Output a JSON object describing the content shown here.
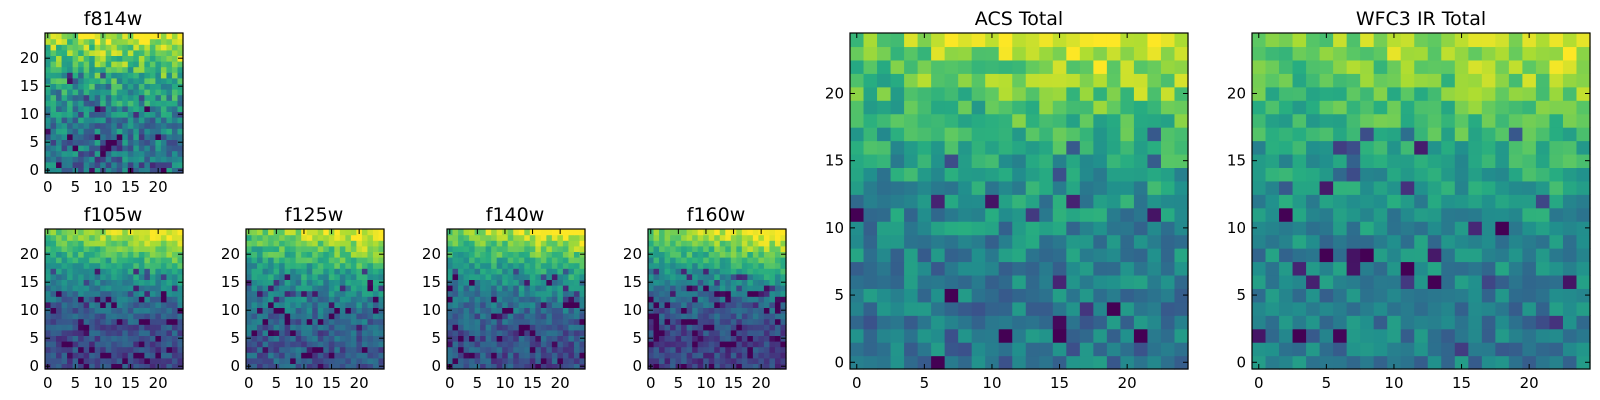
{
  "chart_data": [
    {
      "type": "heatmap",
      "title": "f814w",
      "grid": false,
      "colormap": "viridis",
      "xlim": [
        -0.5,
        24.5
      ],
      "ylim": [
        -0.5,
        24.5
      ],
      "x_ticks": [
        0,
        5,
        10,
        15,
        20
      ],
      "y_ticks": [
        0,
        5,
        10,
        15,
        20
      ],
      "trend": {
        "base": 0.38,
        "top_boost": 0.6,
        "noise": 0.2,
        "dark_pixel_rate": 0.1
      }
    },
    {
      "type": "heatmap",
      "title": "f105w",
      "grid": false,
      "colormap": "viridis",
      "xlim": [
        -0.5,
        24.5
      ],
      "ylim": [
        -0.5,
        24.5
      ],
      "x_ticks": [
        0,
        5,
        10,
        15,
        20
      ],
      "y_ticks": [
        0,
        5,
        10,
        15,
        20
      ],
      "trend": {
        "base": 0.22,
        "top_boost": 0.75,
        "noise": 0.12,
        "dark_pixel_rate": 0.14
      }
    },
    {
      "type": "heatmap",
      "title": "f125w",
      "grid": false,
      "colormap": "viridis",
      "xlim": [
        -0.5,
        24.5
      ],
      "ylim": [
        -0.5,
        24.5
      ],
      "x_ticks": [
        0,
        5,
        10,
        15,
        20
      ],
      "y_ticks": [
        0,
        5,
        10,
        15,
        20
      ],
      "trend": {
        "base": 0.28,
        "top_boost": 0.68,
        "noise": 0.14,
        "dark_pixel_rate": 0.1
      }
    },
    {
      "type": "heatmap",
      "title": "f140w",
      "grid": false,
      "colormap": "viridis",
      "xlim": [
        -0.5,
        24.5
      ],
      "ylim": [
        -0.5,
        24.5
      ],
      "x_ticks": [
        0,
        5,
        10,
        15,
        20
      ],
      "y_ticks": [
        0,
        5,
        10,
        15,
        20
      ],
      "trend": {
        "base": 0.25,
        "top_boost": 0.72,
        "noise": 0.13,
        "dark_pixel_rate": 0.13
      }
    },
    {
      "type": "heatmap",
      "title": "f160w",
      "grid": false,
      "colormap": "viridis",
      "xlim": [
        -0.5,
        24.5
      ],
      "ylim": [
        -0.5,
        24.5
      ],
      "x_ticks": [
        0,
        5,
        10,
        15,
        20
      ],
      "y_ticks": [
        0,
        5,
        10,
        15,
        20
      ],
      "trend": {
        "base": 0.2,
        "top_boost": 0.78,
        "noise": 0.12,
        "dark_pixel_rate": 0.18
      }
    },
    {
      "type": "heatmap",
      "title": "ACS Total",
      "grid": false,
      "colormap": "viridis",
      "xlim": [
        -0.5,
        24.5
      ],
      "ylim": [
        -0.5,
        24.5
      ],
      "x_ticks": [
        0,
        5,
        10,
        15,
        20
      ],
      "y_ticks": [
        0,
        5,
        10,
        15,
        20
      ],
      "trend": {
        "base": 0.4,
        "top_boost": 0.55,
        "noise": 0.16,
        "dark_pixel_rate": 0.08
      }
    },
    {
      "type": "heatmap",
      "title": "WFC3 IR Total",
      "grid": false,
      "colormap": "viridis",
      "xlim": [
        -0.5,
        24.5
      ],
      "ylim": [
        -0.5,
        24.5
      ],
      "x_ticks": [
        0,
        5,
        10,
        15,
        20
      ],
      "y_ticks": [
        0,
        5,
        10,
        15,
        20
      ],
      "trend": {
        "base": 0.42,
        "top_boost": 0.5,
        "noise": 0.14,
        "dark_pixel_rate": 0.07
      }
    }
  ]
}
